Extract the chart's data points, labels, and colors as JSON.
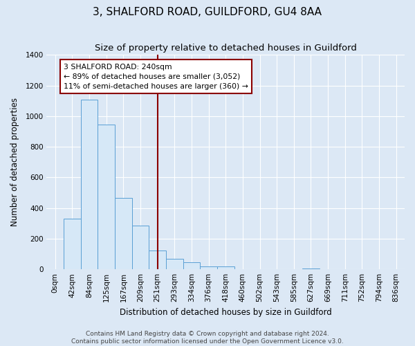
{
  "title": "3, SHALFORD ROAD, GUILDFORD, GU4 8AA",
  "subtitle": "Size of property relative to detached houses in Guildford",
  "xlabel": "Distribution of detached houses by size in Guildford",
  "ylabel": "Number of detached properties",
  "bin_labels": [
    "0sqm",
    "42sqm",
    "84sqm",
    "125sqm",
    "167sqm",
    "209sqm",
    "251sqm",
    "293sqm",
    "334sqm",
    "376sqm",
    "418sqm",
    "460sqm",
    "502sqm",
    "543sqm",
    "585sqm",
    "627sqm",
    "669sqm",
    "711sqm",
    "752sqm",
    "794sqm",
    "836sqm"
  ],
  "bar_heights": [
    0,
    330,
    1110,
    945,
    465,
    285,
    125,
    70,
    45,
    20,
    20,
    0,
    0,
    0,
    0,
    5,
    0,
    0,
    0,
    0,
    0
  ],
  "bar_color": "#d6e8f7",
  "bar_edgecolor": "#5a9fd4",
  "vline_x": 6,
  "vline_color": "#8b0000",
  "annotation_text": "3 SHALFORD ROAD: 240sqm\n← 89% of detached houses are smaller (3,052)\n11% of semi-detached houses are larger (360) →",
  "annotation_box_edgecolor": "#8b0000",
  "annotation_box_facecolor": "#ffffff",
  "ylim": [
    0,
    1400
  ],
  "yticks": [
    0,
    200,
    400,
    600,
    800,
    1000,
    1200,
    1400
  ],
  "footer1": "Contains HM Land Registry data © Crown copyright and database right 2024.",
  "footer2": "Contains public sector information licensed under the Open Government Licence v3.0.",
  "background_color": "#dce8f5",
  "plot_background": "#dce8f5",
  "grid_color": "#ffffff",
  "title_fontsize": 11,
  "subtitle_fontsize": 9.5,
  "axis_label_fontsize": 8.5,
  "tick_fontsize": 7.5,
  "footer_fontsize": 6.5
}
